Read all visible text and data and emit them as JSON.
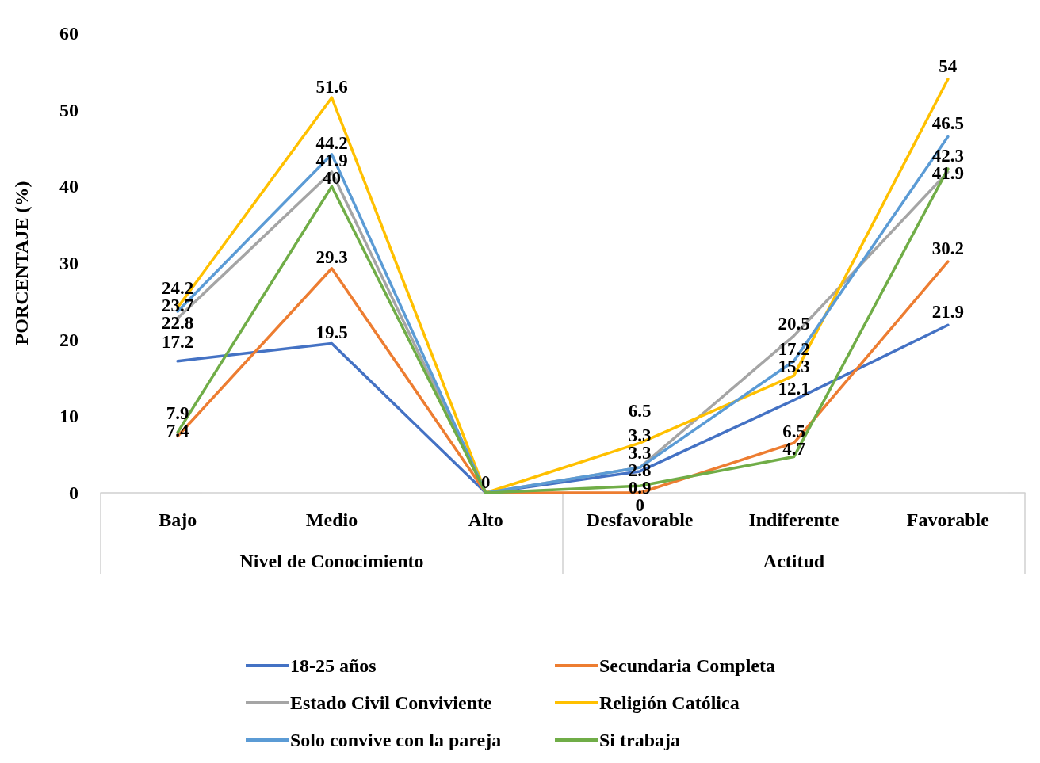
{
  "chart_data": {
    "type": "line",
    "ylabel": "PORCENTAJE (%)",
    "categories": [
      "Bajo",
      "Medio",
      "Alto",
      "Desfavorable",
      "Indiferente",
      "Favorable"
    ],
    "annotations": [
      "Nivel de Conocimiento",
      "Actitud"
    ],
    "series": [
      {
        "name": "18-25 años",
        "color": "#4472c4",
        "values": [
          17.2,
          19.5,
          0,
          2.8,
          12.1,
          21.9
        ],
        "value_labels": [
          "17.2",
          "19.5",
          "0",
          "2.8",
          "12.1",
          "21.9"
        ]
      },
      {
        "name": "Secundaria Completa",
        "color": "#ed7d31",
        "values": [
          7.4,
          29.3,
          0,
          0,
          6.5,
          30.2
        ],
        "value_labels": [
          "7.4",
          "29.3",
          null,
          "0",
          "6.5",
          "30.2"
        ]
      },
      {
        "name": "Estado Civil Conviviente",
        "color": "#a5a5a5",
        "values": [
          22.8,
          41.9,
          0,
          3.3,
          20.5,
          41.9
        ],
        "value_labels": [
          "22.8",
          "41.9",
          null,
          "3.3",
          "20.5",
          "41.9"
        ]
      },
      {
        "name": "Religión Católica",
        "color": "#ffc000",
        "values": [
          24.2,
          51.6,
          0,
          6.5,
          15.3,
          54
        ],
        "value_labels": [
          "24.2",
          "51.6",
          null,
          "6.5",
          "15.3",
          "54"
        ]
      },
      {
        "name": "Solo convive con la pareja",
        "color": "#5b9bd5",
        "values": [
          23.7,
          44.2,
          0,
          3.3,
          17.2,
          46.5
        ],
        "value_labels": [
          "23.7",
          "44.2",
          null,
          "3.3",
          "17.2",
          "46.5"
        ]
      },
      {
        "name": "Si trabaja",
        "color": "#70ad47",
        "values": [
          7.9,
          40,
          0,
          0.9,
          4.7,
          42.3
        ],
        "value_labels": [
          "7.9",
          "40",
          null,
          "0.9",
          "4.7",
          "42.3"
        ]
      }
    ],
    "ylim": [
      0,
      60
    ],
    "yticks": [
      0,
      10,
      20,
      30,
      40,
      50,
      60
    ],
    "grid": false,
    "legend": "bottom",
    "marker": "none",
    "line_style": "solid"
  }
}
